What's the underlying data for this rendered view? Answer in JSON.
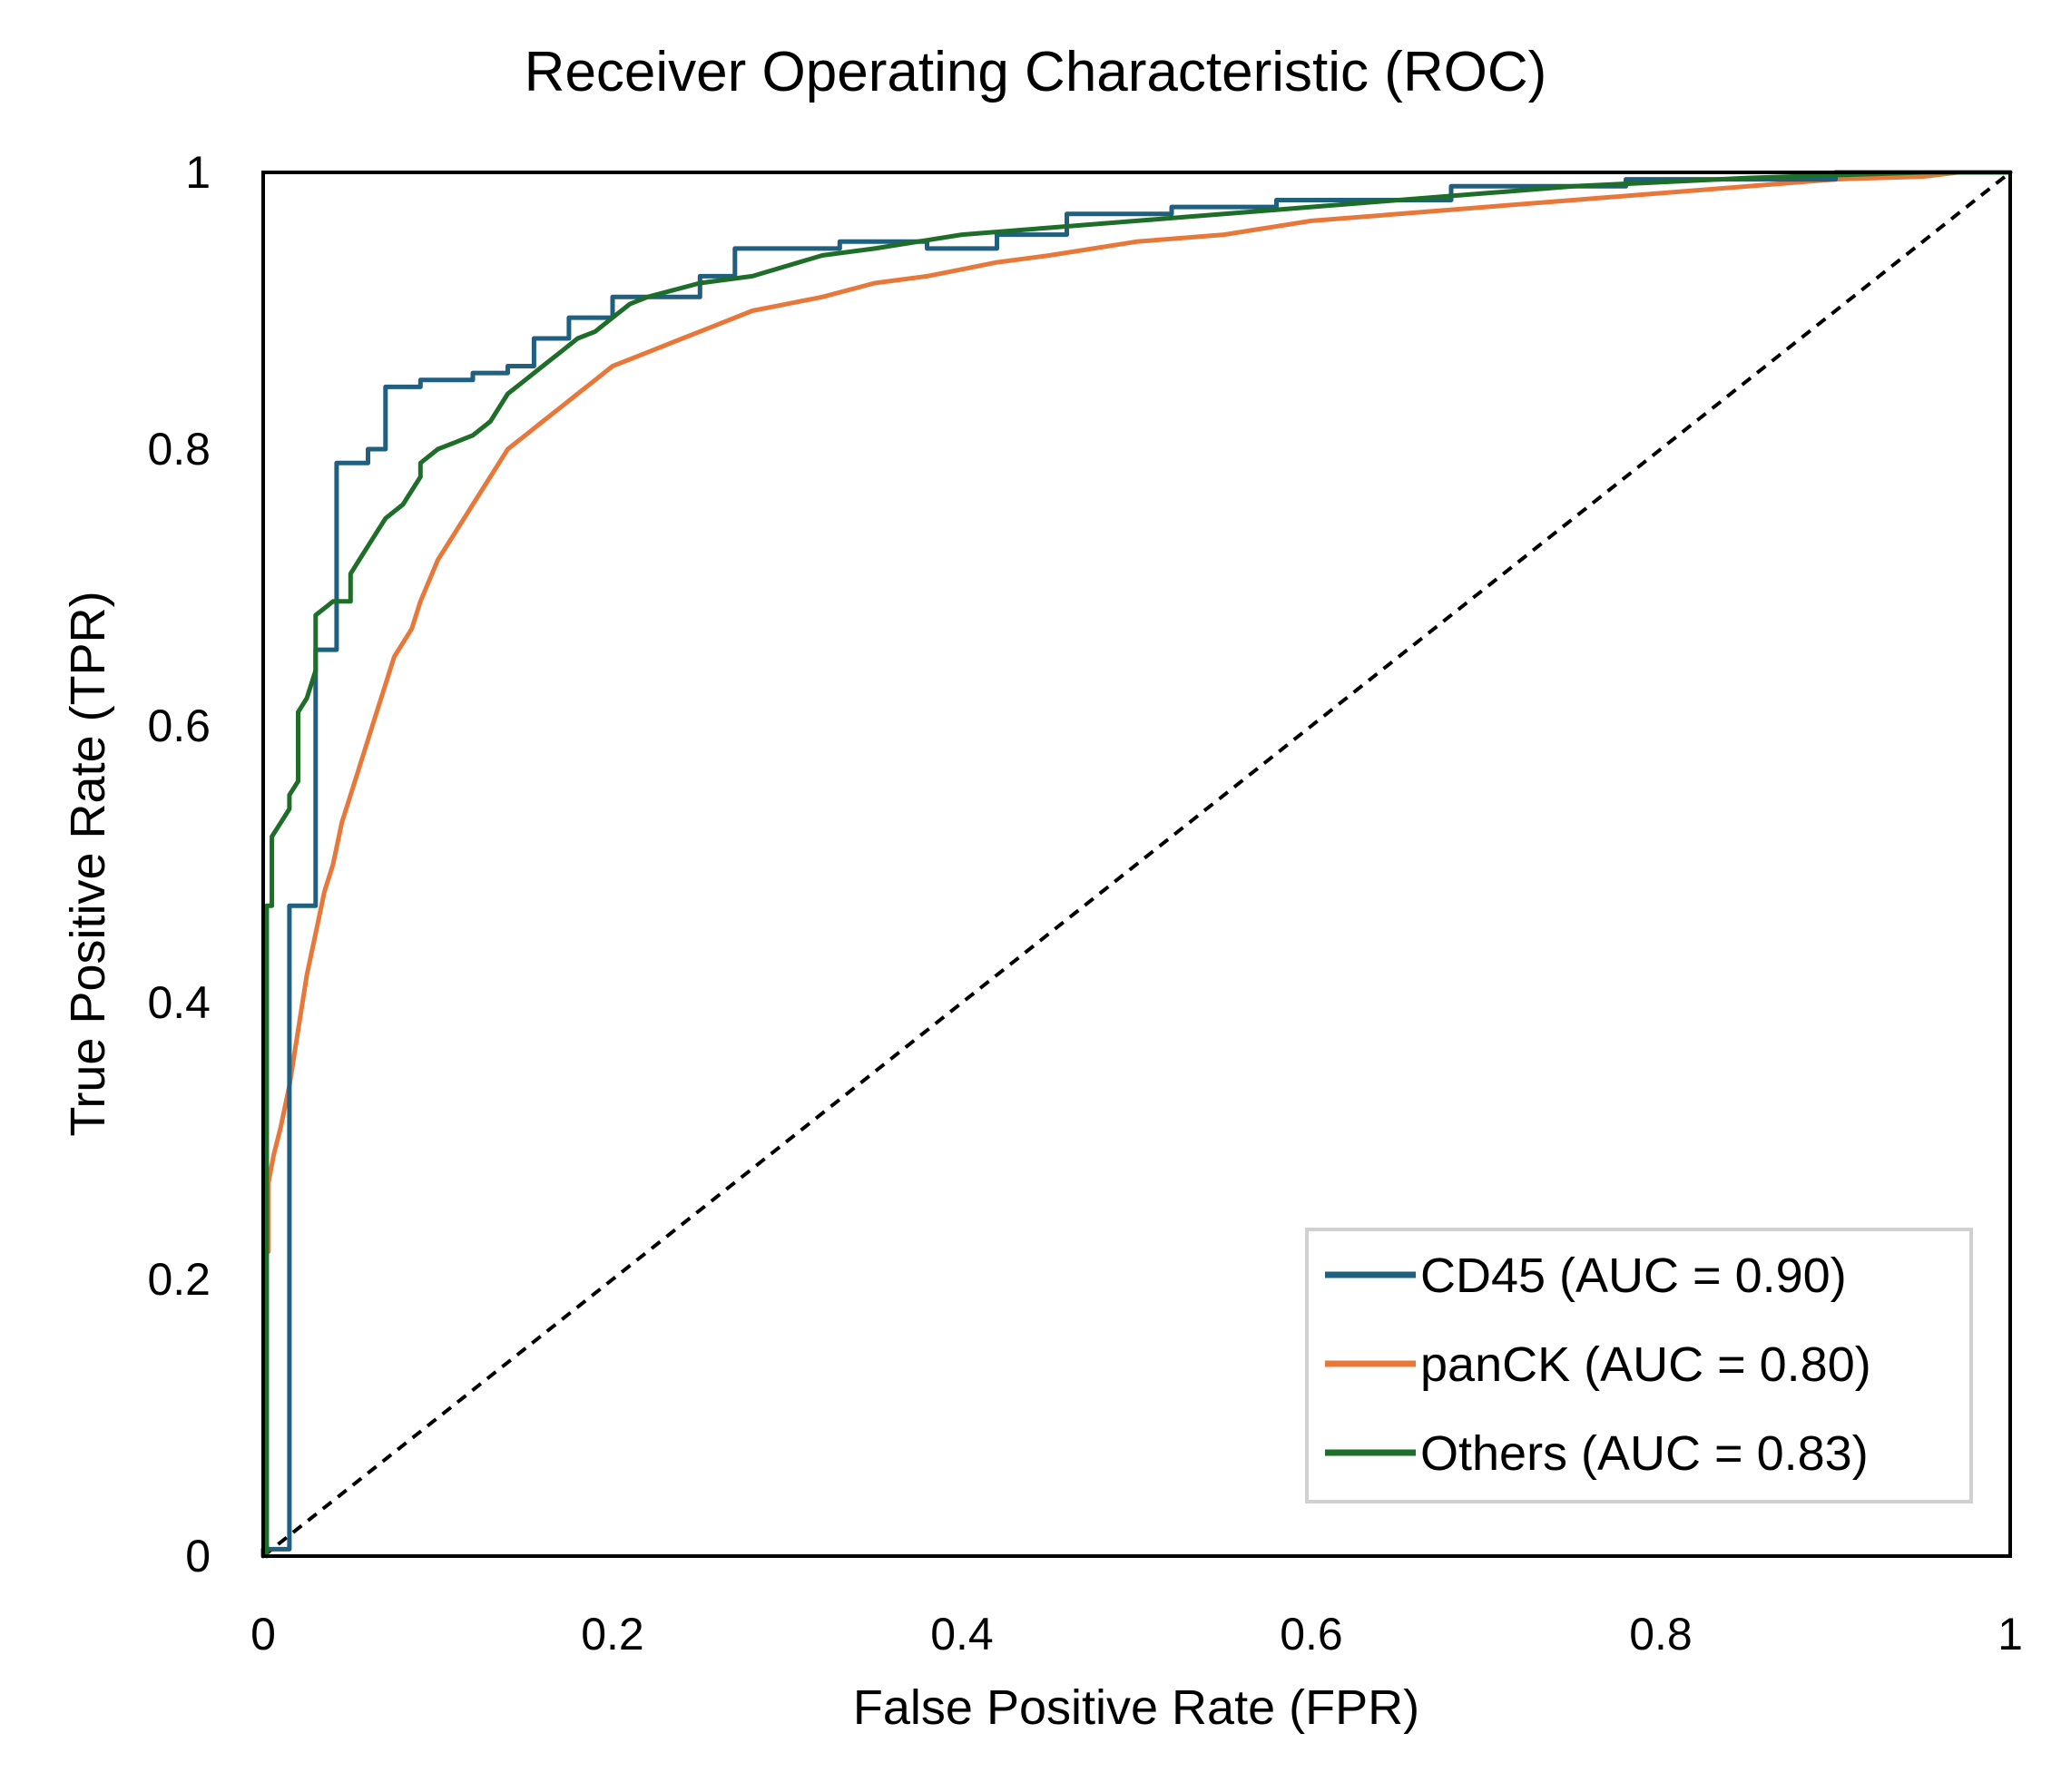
{
  "chart_data": {
    "type": "line",
    "title": "Receiver Operating Characteristic (ROC)",
    "xlabel": "False Positive Rate (FPR)",
    "ylabel": "True Positive Rate (TPR)",
    "xlim": [
      0,
      1
    ],
    "ylim": [
      0,
      1
    ],
    "x_ticks": [
      "0",
      "0.2",
      "0.4",
      "0.6",
      "0.8",
      "1"
    ],
    "y_ticks": [
      "0",
      "0.2",
      "0.4",
      "0.6",
      "0.8",
      "1"
    ],
    "grid": false,
    "legend_position": "bottom-right",
    "reference_line": {
      "style": "dashed",
      "color": "#000000",
      "x": [
        0,
        1
      ],
      "y": [
        0,
        1
      ]
    },
    "series": [
      {
        "name": "CD45 (AUC = 0.90)",
        "color": "#1f5f7f",
        "step": true,
        "x": [
          0,
          0,
          0.015,
          0.015,
          0.03,
          0.03,
          0.042,
          0.042,
          0.06,
          0.06,
          0.07,
          0.07,
          0.09,
          0.09,
          0.12,
          0.12,
          0.14,
          0.14,
          0.155,
          0.155,
          0.175,
          0.175,
          0.2,
          0.2,
          0.25,
          0.25,
          0.27,
          0.27,
          0.33,
          0.33,
          0.38,
          0.38,
          0.42,
          0.42,
          0.46,
          0.46,
          0.52,
          0.52,
          0.58,
          0.58,
          0.68,
          0.68,
          0.78,
          0.78,
          0.9,
          0.9,
          1.0
        ],
        "y": [
          0,
          0.005,
          0.005,
          0.47,
          0.47,
          0.655,
          0.655,
          0.79,
          0.79,
          0.8,
          0.8,
          0.845,
          0.845,
          0.85,
          0.85,
          0.855,
          0.855,
          0.86,
          0.86,
          0.88,
          0.88,
          0.895,
          0.895,
          0.91,
          0.91,
          0.925,
          0.925,
          0.945,
          0.945,
          0.95,
          0.95,
          0.945,
          0.945,
          0.955,
          0.955,
          0.97,
          0.97,
          0.975,
          0.975,
          0.98,
          0.98,
          0.99,
          0.99,
          0.995,
          0.995,
          1.0,
          1.0
        ]
      },
      {
        "name": "panCK (AUC = 0.80)",
        "color": "#e8773a",
        "step": false,
        "x": [
          0.003,
          0.003,
          0.006,
          0.01,
          0.015,
          0.02,
          0.025,
          0.03,
          0.035,
          0.04,
          0.045,
          0.05,
          0.055,
          0.06,
          0.065,
          0.07,
          0.075,
          0.08,
          0.085,
          0.09,
          0.1,
          0.11,
          0.12,
          0.13,
          0.14,
          0.15,
          0.16,
          0.17,
          0.18,
          0.19,
          0.2,
          0.22,
          0.24,
          0.26,
          0.28,
          0.3,
          0.32,
          0.35,
          0.38,
          0.4,
          0.42,
          0.45,
          0.5,
          0.55,
          0.6,
          0.65,
          0.7,
          0.75,
          0.8,
          0.85,
          0.9,
          0.95,
          0.97,
          1.0
        ],
        "y": [
          0.22,
          0.27,
          0.29,
          0.31,
          0.34,
          0.38,
          0.42,
          0.45,
          0.48,
          0.5,
          0.53,
          0.55,
          0.57,
          0.59,
          0.61,
          0.63,
          0.65,
          0.66,
          0.67,
          0.69,
          0.72,
          0.74,
          0.76,
          0.78,
          0.8,
          0.81,
          0.82,
          0.83,
          0.84,
          0.85,
          0.86,
          0.87,
          0.88,
          0.89,
          0.9,
          0.905,
          0.91,
          0.92,
          0.925,
          0.93,
          0.935,
          0.94,
          0.95,
          0.955,
          0.965,
          0.97,
          0.975,
          0.98,
          0.985,
          0.99,
          0.995,
          0.997,
          1.0,
          1.0
        ]
      },
      {
        "name": "Others (AUC = 0.83)",
        "color": "#1e6e2a",
        "step": false,
        "x": [
          0.002,
          0.002,
          0.005,
          0.005,
          0.01,
          0.015,
          0.015,
          0.02,
          0.02,
          0.025,
          0.03,
          0.03,
          0.03,
          0.035,
          0.04,
          0.05,
          0.05,
          0.055,
          0.06,
          0.07,
          0.08,
          0.09,
          0.09,
          0.1,
          0.11,
          0.12,
          0.13,
          0.14,
          0.15,
          0.16,
          0.17,
          0.18,
          0.19,
          0.2,
          0.21,
          0.22,
          0.25,
          0.28,
          0.32,
          0.35,
          0.4,
          0.45,
          0.5,
          0.55,
          0.6,
          0.65,
          0.7,
          0.75,
          0.8,
          0.85,
          0.9,
          0.95,
          1.0
        ],
        "y": [
          0,
          0.47,
          0.47,
          0.52,
          0.53,
          0.54,
          0.55,
          0.56,
          0.61,
          0.62,
          0.64,
          0.66,
          0.68,
          0.685,
          0.69,
          0.69,
          0.71,
          0.72,
          0.73,
          0.75,
          0.76,
          0.78,
          0.79,
          0.8,
          0.805,
          0.81,
          0.82,
          0.84,
          0.85,
          0.86,
          0.87,
          0.88,
          0.885,
          0.895,
          0.905,
          0.91,
          0.92,
          0.925,
          0.94,
          0.945,
          0.955,
          0.96,
          0.965,
          0.97,
          0.975,
          0.98,
          0.985,
          0.99,
          0.993,
          0.996,
          0.998,
          1.0,
          1.0
        ]
      }
    ]
  }
}
